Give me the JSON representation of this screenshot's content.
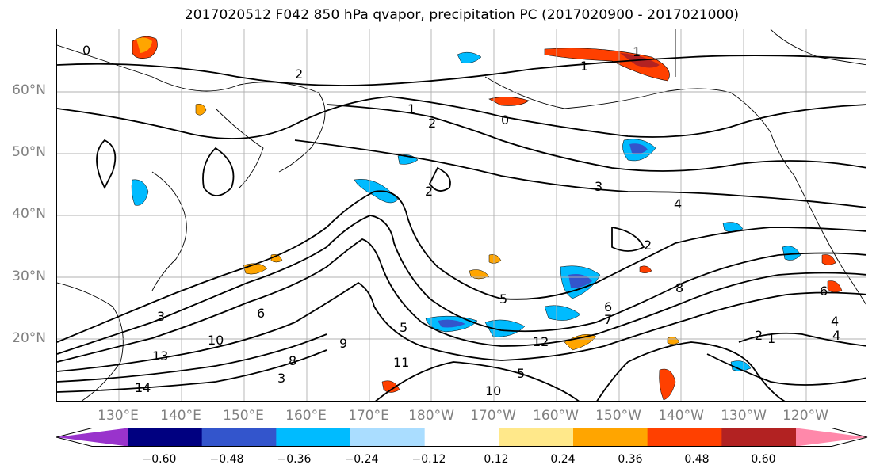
{
  "title": "2017020512 F042 850 hPa qvapor, precipitation PC (2017020900 - 2017021000)",
  "latitude_labels": [
    "60°N",
    "50°N",
    "40°N",
    "30°N",
    "20°N"
  ],
  "longitude_labels": [
    "130°E",
    "140°E",
    "150°E",
    "160°E",
    "170°E",
    "180°W",
    "170°W",
    "160°W",
    "150°W",
    "140°W",
    "130°W",
    "120°W"
  ],
  "contour_labels": [
    "0",
    "1",
    "1",
    "2",
    "0",
    "1",
    "2",
    "3",
    "4",
    "2",
    "2",
    "3",
    "4",
    "5",
    "6",
    "8",
    "13",
    "14",
    "10",
    "11",
    "12",
    "9",
    "6",
    "8",
    "10",
    "3",
    "5",
    "6",
    "7",
    "5",
    "2",
    "1",
    "4"
  ],
  "colorbar": {
    "tick_labels": [
      "−0.60",
      "−0.48",
      "−0.36",
      "−0.24",
      "−0.12",
      "0.12",
      "0.24",
      "0.36",
      "0.48",
      "0.60"
    ],
    "colors": [
      "#9933cc",
      "#000080",
      "#3355cc",
      "#00bbff",
      "#aaddff",
      "#ffffff",
      "#ffe88a",
      "#ffa500",
      "#ff4000",
      "#b22222",
      "#ff88aa"
    ]
  }
}
